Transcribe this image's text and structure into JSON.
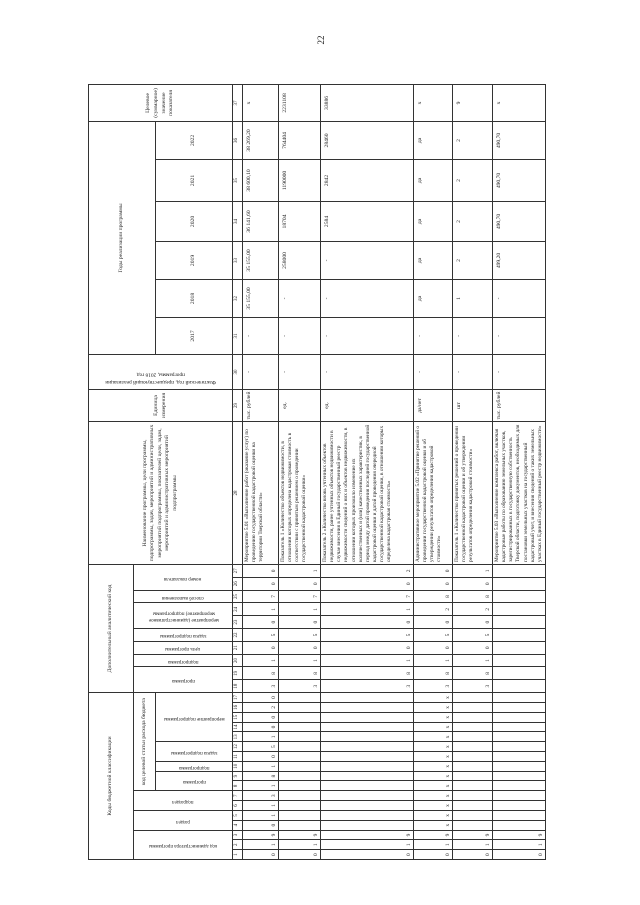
{
  "page_number": "22",
  "header": {
    "budget_codes": "Коды бюджетной классификации",
    "additional_code": "Дополнительный аналитический код",
    "admin_code": "код администратора программы",
    "section": "раздел",
    "subsection": "подраздел",
    "target_article": "код целевой статьи расхода бюджета",
    "ta_program": "программа",
    "ta_subprogram": "подпрограмма",
    "ta_task": "задача подпрограммы",
    "ta_event": "мероприятие подпрограммы",
    "ad_program": "программа",
    "ad_subprogram": "подпрограмма",
    "ad_goal": "цель программы",
    "ad_task": "задача подпрограммы",
    "ad_event": "мероприятие (административное мероприятие) подпрограммы",
    "ad_method": "способ выполнения",
    "ad_indicator_no": "номер показателя",
    "name": "Наименование программы, цели программы, подпрограммы, задач, мероприятий и административных мероприятий подпрограммы, показателей цели, задач, мероприятий и административных мероприятий подпрограммы",
    "unit": "Единица измерения",
    "base_year": "Фактический год, предшествующий реализации программы, 2016 год",
    "years_title": "Годы реализации программы",
    "years": [
      "2017",
      "2018",
      "2019",
      "2020",
      "2021",
      "2022"
    ],
    "target": "Целевое (суммарное) значение показателя"
  },
  "column_numbers": [
    "1",
    "2",
    "3",
    "4",
    "5",
    "6",
    "7",
    "8",
    "9",
    "10",
    "11",
    "12",
    "13",
    "14",
    "15",
    "16",
    "17",
    "18",
    "19",
    "20",
    "21",
    "22",
    "23",
    "24",
    "25",
    "26",
    "27",
    "28",
    "29",
    "30",
    "31",
    "32",
    "33",
    "34",
    "35",
    "36",
    "37"
  ],
  "rows": [
    {
      "codes": [
        "0",
        "1",
        "9",
        "0",
        "1",
        "1",
        "3",
        "1",
        "8",
        "1",
        "0",
        "5",
        "1",
        "0",
        "0",
        "2",
        "0",
        "3",
        "8",
        "1",
        "0",
        "5",
        "0",
        "1",
        "7",
        "0",
        "0"
      ],
      "name": "Мероприятие 5.01 «Выполнение работ (оказание услуг) по проведению государственной кадастровой оценки на территории Тверской области»",
      "unit": "тыс. рублей",
      "base": "-",
      "values": [
        "-",
        "35 155,00",
        "35 155,00",
        "36 141,60",
        "38 600,10",
        "38 269,20"
      ],
      "target": "х"
    },
    {
      "codes": [
        "0",
        "1",
        "9",
        "",
        "",
        "",
        "",
        "",
        "",
        "",
        "",
        "",
        "",
        "",
        "",
        "",
        "",
        "3",
        "8",
        "1",
        "0",
        "5",
        "0",
        "1",
        "7",
        "0",
        "1"
      ],
      "name": "Показатель 1 «Количество объектов недвижимости, в отношении которых определена кадастровая стоимость в соответствии с принятым решением о проведении государственной кадастровой оценки»",
      "unit": "ед.",
      "base": "-",
      "values": [
        "-",
        "-",
        "258000",
        "18704",
        "1190000",
        "764404"
      ],
      "target": "2231108"
    },
    {
      "codes": [
        "0",
        "1",
        "9",
        "",
        "",
        "",
        "",
        "",
        "",
        "",
        "",
        "",
        "",
        "",
        "",
        "",
        "",
        "3",
        "8",
        "1",
        "0",
        "5",
        "0",
        "1",
        "7",
        "0",
        "2"
      ],
      "name": "Показатель 2 «Количество вновь учтенных объектов недвижимости, ранее учтенных объектов недвижимости в случае внесения в Единый государственный реестр недвижимости сведений о них и объектов недвижимости, в отношении которых произошло изменение их количественных и (или) качественных характеристик, в период между датой проведения последней государственной кадастровой оценки и датой проведения очередной государственной кадастровой оценки, в отношении которых определена кадастровая стоимость»",
      "unit": "ед.",
      "base": "-",
      "values": [
        "-",
        "-",
        "-",
        "2584",
        "2842",
        "28460"
      ],
      "target": "33886"
    },
    {
      "codes": [
        "0",
        "1",
        "9",
        "х",
        "х",
        "х",
        "х",
        "х",
        "х",
        "х",
        "х",
        "х",
        "х",
        "х",
        "х",
        "х",
        "х",
        "3",
        "8",
        "1",
        "0",
        "5",
        "0",
        "2",
        "8",
        "0",
        "0"
      ],
      "name": "Административное мероприятие 5.02 «Принятие решений о проведении государственной кадастровой оценки и об утверждении результатов определения кадастровой стоимости»",
      "unit": "да/нет",
      "base": "-",
      "values": [
        "-",
        "да",
        "да",
        "да",
        "да",
        "да"
      ],
      "target": "х"
    },
    {
      "codes": [
        "0",
        "1",
        "9",
        "",
        "",
        "",
        "",
        "",
        "",
        "",
        "",
        "",
        "",
        "",
        "",
        "",
        "",
        "3",
        "8",
        "1",
        "0",
        "5",
        "0",
        "2",
        "8",
        "0",
        "1"
      ],
      "name": "Показатель 1 «Количество принятых решений о проведении государственной кадастровой оценки и об утверждении результатов определения кадастровой стоимости»",
      "unit": "шт",
      "base": "-",
      "values": [
        "-",
        "1",
        "2",
        "2",
        "2",
        "2"
      ],
      "target": "9"
    },
    {
      "codes": [
        "0",
        "1",
        "9",
        "",
        "",
        "",
        "",
        "",
        "",
        "",
        "",
        "",
        "",
        "",
        "",
        "",
        "",
        "",
        "",
        "",
        "",
        "",
        "",
        "",
        "",
        "",
        ""
      ],
      "name": "Мероприятие 5.03 «Выполнение комплекса работ, включая кадастровые работы по образованию земельных участков, зарегистрированных в государственную собственность Тверской области, подготовку документов, необходимых для постановки земельных участков на государственный кадастровый учет, и внесения сведений о таких земельных участках в Единый государственный реестр недвижимости»",
      "unit": "тыс. рублей",
      "base": "-",
      "values": [
        "-",
        "-",
        "499,20",
        "490,70",
        "490,70",
        "490,70"
      ],
      "target": "х"
    }
  ]
}
